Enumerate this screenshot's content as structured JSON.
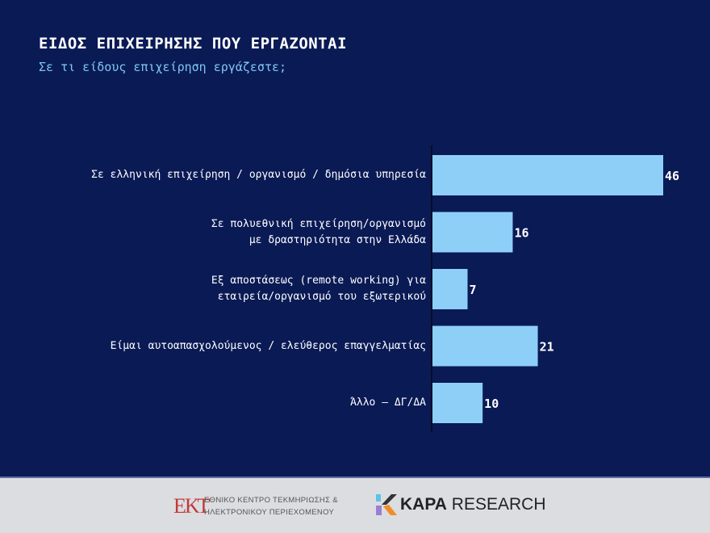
{
  "title": "ΕΙΔΟΣ ΕΠΙΧΕΙΡΗΣΗΣ ΠΟΥ ΕΡΓΑΖΟΝΤΑΙ",
  "subtitle": "Σε τι είδους επιχείρηση εργάζεστε;",
  "chart_data": {
    "type": "bar",
    "orientation": "horizontal",
    "categories": [
      "Σε ελληνική επιχείρηση / οργανισμό / δημόσια υπηρεσία",
      "Σε πολυεθνική επιχείρηση/οργανισμό\nμε δραστηριότητα στην Ελλάδα",
      "Εξ αποστάσεως (remote working) για\nεταιρεία/οργανισμό του εξωτερικού",
      "Είμαι αυτοαπασχολούμενος / ελεύθερος επαγγελματίας",
      "Άλλο – ΔΓ/ΔΑ"
    ],
    "values": [
      46,
      16,
      7,
      21,
      10
    ],
    "bar_color": "#8ecff8",
    "label_color": "#ffffff",
    "background": "#0a1a55"
  },
  "footer": {
    "ekt_logo": "ΕΚΤ",
    "ekt_line1": "ΕΘΝΙΚΟ ΚΕΝΤΡΟ ΤΕΚΜΗΡΙΩΣΗΣ &",
    "ekt_line2": "ΗΛΕΚΤΡΟΝΙΚΟΥ ΠΕΡΙΕΧΟΜΕΝΟΥ",
    "kapa_bold": "KAPA",
    "kapa_rest": "RESEARCH"
  }
}
